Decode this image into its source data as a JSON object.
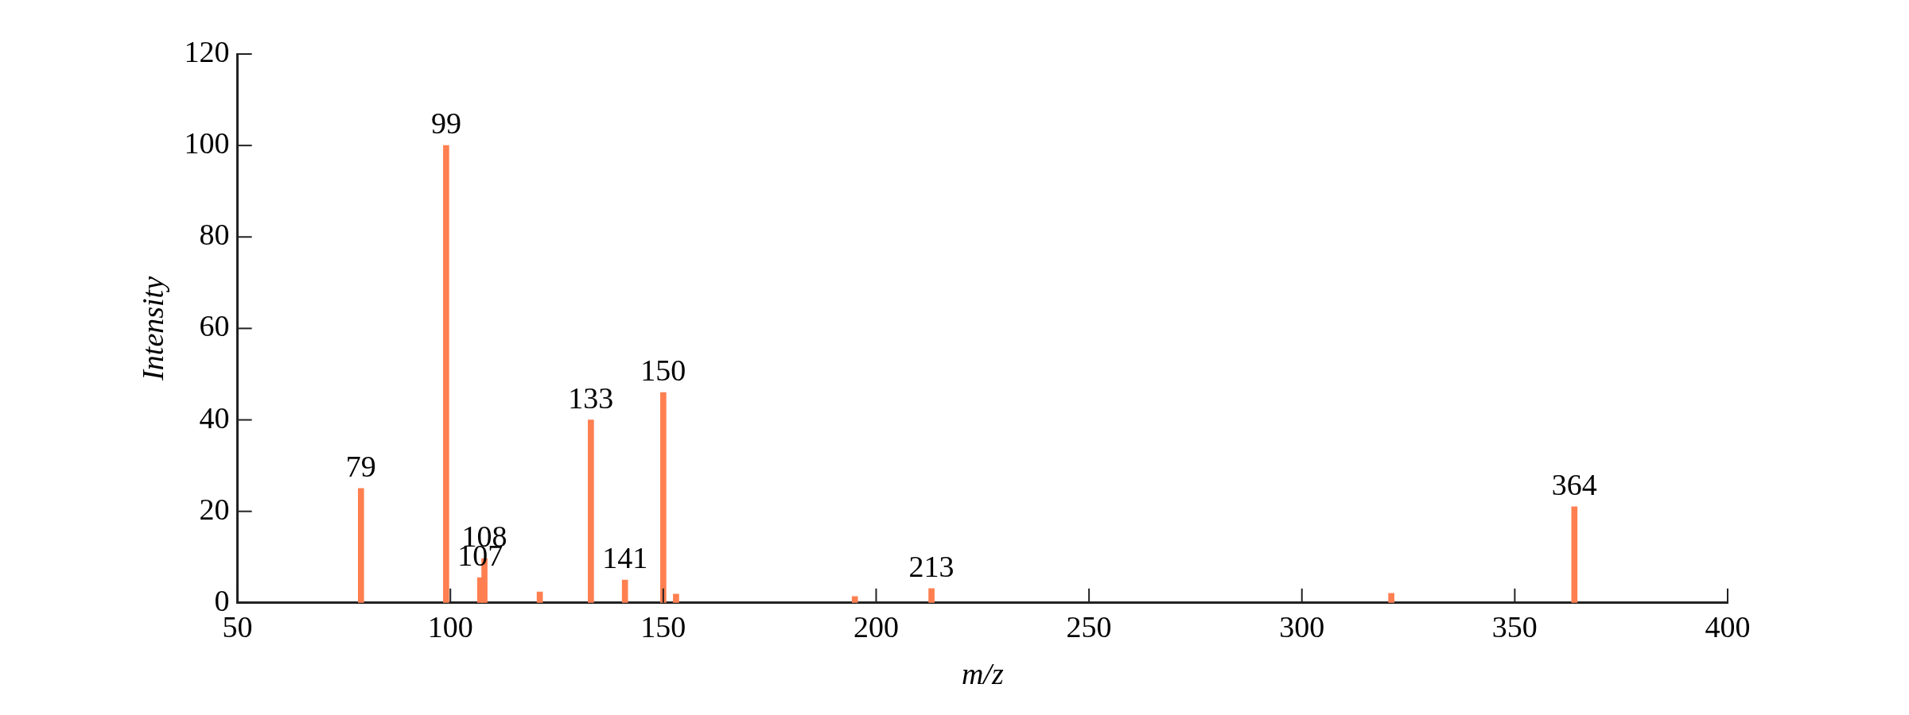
{
  "chart_data": {
    "type": "bar",
    "xlabel": "m/z",
    "ylabel": "Intensity",
    "x": [
      79,
      99,
      107,
      108,
      121,
      133,
      141,
      150,
      153,
      195,
      213,
      321,
      364
    ],
    "series": [
      {
        "color": "#ff7f50",
        "values": [
          25,
          100,
          5.5,
          9.7,
          2.4,
          40,
          5,
          46,
          1.9,
          1.4,
          3.1,
          2.1,
          21
        ]
      }
    ],
    "xlim": [
      50,
      400
    ],
    "xticks": [
      50,
      100,
      150,
      200,
      250,
      300,
      350,
      400
    ],
    "ylim": [
      0,
      120
    ],
    "yticks": [
      0,
      20,
      40,
      60,
      80,
      100,
      120
    ],
    "grid": false,
    "legend": false,
    "annotations": [
      {
        "text": "79",
        "x": 79,
        "y": 25
      },
      {
        "text": "99",
        "x": 99,
        "y": 100
      },
      {
        "text": "107",
        "x": 107,
        "y": 5.5
      },
      {
        "text": "108",
        "x": 108,
        "y": 9.7
      },
      {
        "text": "133",
        "x": 133,
        "y": 40
      },
      {
        "text": "141",
        "x": 141,
        "y": 5
      },
      {
        "text": "150",
        "x": 150,
        "y": 46
      },
      {
        "text": "213",
        "x": 213,
        "y": 3.1
      },
      {
        "text": "364",
        "x": 364,
        "y": 21
      }
    ]
  }
}
